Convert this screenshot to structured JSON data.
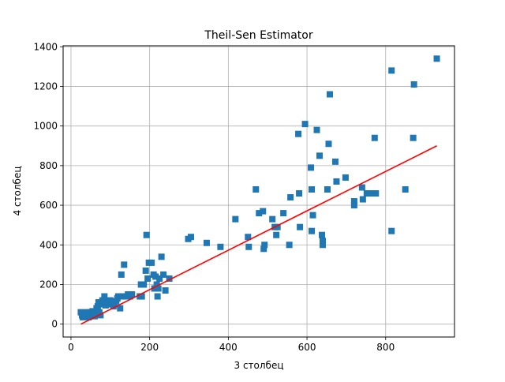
{
  "chart_data": {
    "type": "scatter",
    "title": "Theil-Sen Estimator",
    "xlabel": "3 столбец",
    "ylabel": "4 столбец",
    "xlim": [
      -20,
      975
    ],
    "ylim": [
      -65,
      1405
    ],
    "xticks": [
      0,
      200,
      400,
      600,
      800
    ],
    "yticks": [
      0,
      200,
      400,
      600,
      800,
      1000,
      1200,
      1400
    ],
    "grid": true,
    "colors": {
      "points": "#1f77b4",
      "fit_line": "#ff0000",
      "grid": "#b0b0b0"
    },
    "fit_line": {
      "x": [
        25,
        930
      ],
      "y": [
        0,
        900
      ]
    },
    "series": [
      {
        "marker": "square",
        "points": [
          [
            25,
            60
          ],
          [
            28,
            45
          ],
          [
            30,
            35
          ],
          [
            32,
            55
          ],
          [
            35,
            40
          ],
          [
            38,
            50
          ],
          [
            40,
            60
          ],
          [
            42,
            45
          ],
          [
            45,
            35
          ],
          [
            48,
            60
          ],
          [
            50,
            40
          ],
          [
            52,
            55
          ],
          [
            55,
            65
          ],
          [
            58,
            45
          ],
          [
            60,
            40
          ],
          [
            62,
            50
          ],
          [
            65,
            80
          ],
          [
            68,
            90
          ],
          [
            70,
            110
          ],
          [
            72,
            60
          ],
          [
            75,
            45
          ],
          [
            78,
            100
          ],
          [
            80,
            120
          ],
          [
            85,
            140
          ],
          [
            88,
            95
          ],
          [
            90,
            110
          ],
          [
            95,
            100
          ],
          [
            100,
            120
          ],
          [
            105,
            110
          ],
          [
            108,
            90
          ],
          [
            110,
            100
          ],
          [
            115,
            115
          ],
          [
            118,
            130
          ],
          [
            120,
            140
          ],
          [
            125,
            80
          ],
          [
            128,
            250
          ],
          [
            130,
            140
          ],
          [
            135,
            300
          ],
          [
            140,
            140
          ],
          [
            145,
            150
          ],
          [
            150,
            140
          ],
          [
            155,
            150
          ],
          [
            175,
            140
          ],
          [
            178,
            200
          ],
          [
            180,
            140
          ],
          [
            185,
            200
          ],
          [
            190,
            270
          ],
          [
            192,
            450
          ],
          [
            195,
            230
          ],
          [
            198,
            310
          ],
          [
            205,
            310
          ],
          [
            210,
            250
          ],
          [
            212,
            180
          ],
          [
            215,
            240
          ],
          [
            218,
            200
          ],
          [
            220,
            140
          ],
          [
            222,
            180
          ],
          [
            225,
            230
          ],
          [
            230,
            340
          ],
          [
            235,
            250
          ],
          [
            240,
            170
          ],
          [
            250,
            230
          ],
          [
            298,
            430
          ],
          [
            305,
            440
          ],
          [
            345,
            410
          ],
          [
            380,
            390
          ],
          [
            418,
            530
          ],
          [
            450,
            440
          ],
          [
            452,
            390
          ],
          [
            470,
            680
          ],
          [
            478,
            560
          ],
          [
            488,
            570
          ],
          [
            490,
            380
          ],
          [
            492,
            400
          ],
          [
            512,
            530
          ],
          [
            518,
            490
          ],
          [
            522,
            450
          ],
          [
            525,
            490
          ],
          [
            540,
            560
          ],
          [
            555,
            400
          ],
          [
            558,
            640
          ],
          [
            578,
            960
          ],
          [
            580,
            660
          ],
          [
            582,
            490
          ],
          [
            595,
            1010
          ],
          [
            610,
            790
          ],
          [
            612,
            680
          ],
          [
            615,
            550
          ],
          [
            612,
            470
          ],
          [
            625,
            980
          ],
          [
            632,
            850
          ],
          [
            638,
            450
          ],
          [
            640,
            420
          ],
          [
            640,
            400
          ],
          [
            652,
            680
          ],
          [
            655,
            910
          ],
          [
            658,
            1160
          ],
          [
            672,
            820
          ],
          [
            675,
            720
          ],
          [
            698,
            740
          ],
          [
            720,
            620
          ],
          [
            720,
            600
          ],
          [
            740,
            690
          ],
          [
            742,
            630
          ],
          [
            752,
            660
          ],
          [
            762,
            660
          ],
          [
            772,
            940
          ],
          [
            775,
            660
          ],
          [
            815,
            1280
          ],
          [
            815,
            470
          ],
          [
            850,
            680
          ],
          [
            870,
            940
          ],
          [
            872,
            1210
          ],
          [
            930,
            1340
          ]
        ]
      }
    ]
  }
}
